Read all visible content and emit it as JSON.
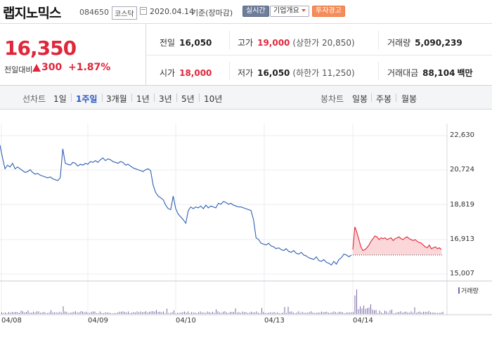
{
  "header": {
    "stock_name": "랩지노믹스",
    "stock_code": "084650",
    "market": "코스닥",
    "date": "2020.04.14",
    "basis": "기준(장마감)",
    "realtime_button": "실시간",
    "company_button": "기업개요",
    "warning_badge": "투자경고"
  },
  "quote": {
    "price": "16,350",
    "change_label": "전일대비",
    "change_value": "300",
    "change_pct": "+1.87%",
    "prev_close_label": "전일",
    "prev_close": "16,050",
    "high_label": "고가",
    "high": "19,000",
    "upper_limit": "(상한가 20,850)",
    "volume_label": "거래량",
    "volume": "5,090,239",
    "open_label": "시가",
    "open": "18,000",
    "low_label": "저가",
    "low": "16,050",
    "lower_limit": "(하한가 11,250)",
    "amount_label": "거래대금",
    "amount": "88,104",
    "amount_unit": "백만"
  },
  "toolbar": {
    "line_chart_label": "선차트",
    "periods": [
      "1일",
      "1주일",
      "3개월",
      "1년",
      "3년",
      "5년",
      "10년"
    ],
    "selected_period": "1주일",
    "candle_chart_label": "봉차트",
    "candle_periods": [
      "일봉",
      "주봉",
      "월봉"
    ]
  },
  "colors": {
    "up": "#e0263a",
    "line": "#2f5fb3",
    "volume": "#7b68a6",
    "realtime_btn": "#6e7d99",
    "warning": "#f58c5b"
  },
  "chart_data": {
    "type": "line",
    "y_ticks": [
      "22,630",
      "20,724",
      "18,819",
      "16,913",
      "15,007"
    ],
    "x_ticks": [
      "04/08",
      "04/09",
      "04/10",
      "04/13",
      "04/14"
    ],
    "ylim": [
      15007,
      22630
    ],
    "volume_legend": "거래량",
    "series": [
      {
        "values": [
          22100,
          21400,
          20800,
          21000,
          20900,
          21100,
          20800,
          20900,
          20800,
          20700,
          20600,
          20650,
          20750,
          20600,
          20500,
          20550,
          20450,
          20400,
          20350,
          20300,
          20350,
          20250,
          20200,
          20150,
          20300,
          21900,
          21100,
          21050,
          21000,
          21150,
          21100,
          20950,
          21050,
          21000,
          21100,
          21050,
          21200,
          21150,
          21250,
          21150,
          21300,
          21400,
          21250,
          21350,
          21300,
          21200,
          21150,
          21100,
          21200,
          21150,
          21000,
          21050,
          20950,
          20850,
          20800,
          20750,
          20700,
          20650,
          20750,
          20800,
          20700,
          19900,
          19500,
          19300,
          19200,
          19100,
          18800,
          18600,
          18550,
          19300,
          18600,
          18300,
          18150,
          18000,
          17800,
          18500,
          18700,
          18600,
          18700,
          18650,
          18750,
          18600,
          18800,
          18650,
          18750,
          18700,
          18650,
          18900,
          18850,
          19000,
          18950,
          18850,
          18900,
          18800,
          18750,
          18700,
          18700,
          18650,
          18600,
          18550,
          18500,
          18000,
          17000,
          16900,
          16700,
          16650,
          16600,
          16700,
          16550,
          16500,
          16400,
          16450,
          16350,
          16300,
          16400,
          16250,
          16200,
          16300,
          16150,
          16100,
          16200,
          16050,
          16000,
          15900,
          15850,
          15800,
          15950,
          15750,
          15700,
          15800,
          15650,
          15600,
          15500,
          15700,
          15550,
          15800,
          15900,
          16100,
          16050,
          15950,
          16050,
          16350,
          17600,
          17300,
          16900,
          16500,
          16300,
          16350,
          16450,
          16600,
          16800,
          16950,
          17100,
          17050,
          16900,
          17000,
          16950,
          17000,
          16900,
          16950,
          17000,
          16850,
          16950,
          17000,
          17050,
          16950,
          16900,
          17000,
          17050,
          16950,
          16900,
          16850,
          16900,
          16800,
          16750,
          16700,
          16600,
          16500,
          16450,
          16600,
          16400,
          16450,
          16500,
          16400,
          16450,
          16350
        ]
      }
    ],
    "prev_close_reference": 16050
  }
}
